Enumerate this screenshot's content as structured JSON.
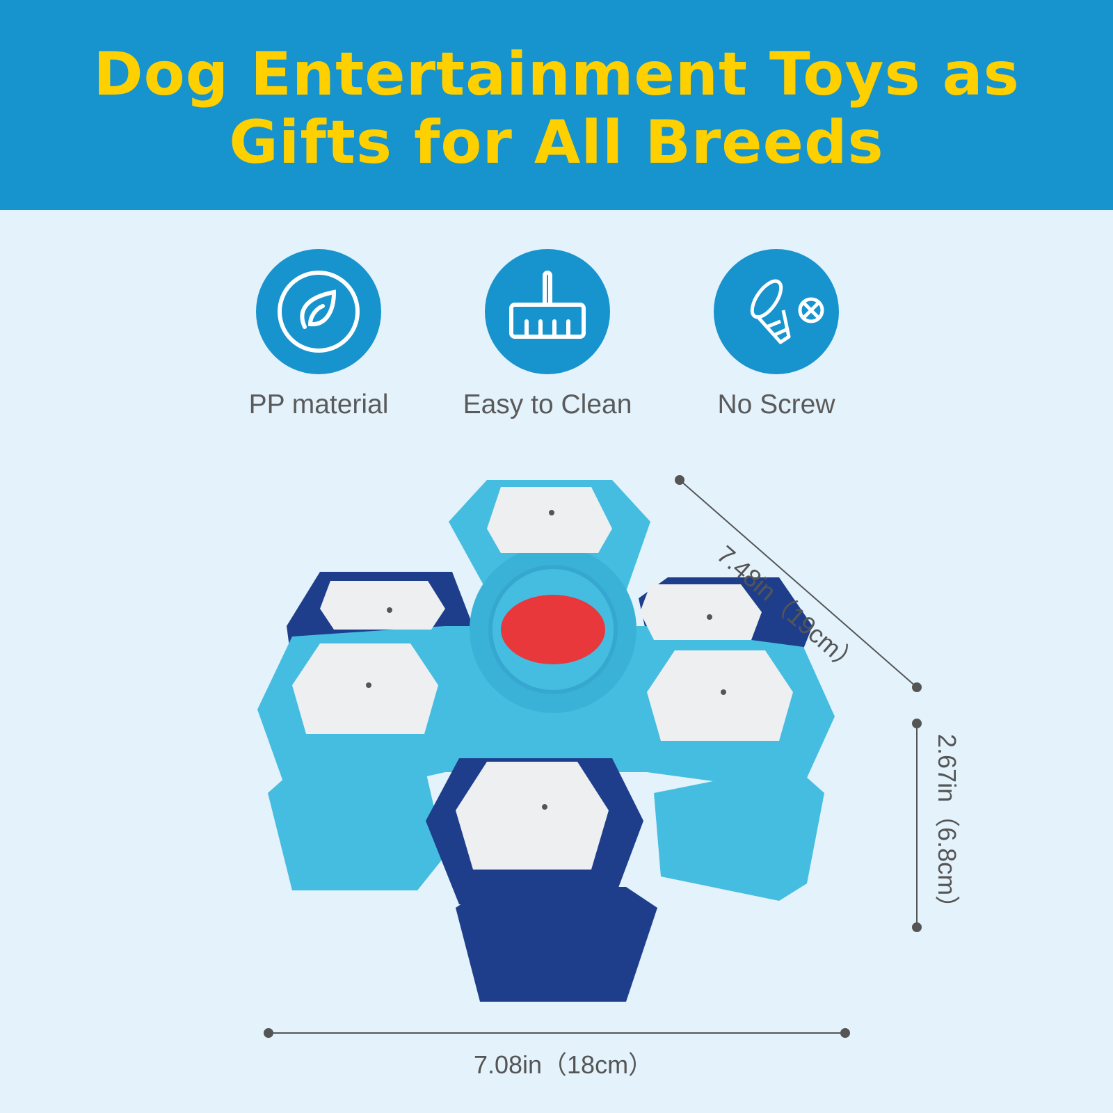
{
  "title": {
    "line1": "Dog Entertainment Toys as",
    "line2": "Gifts for All Breeds"
  },
  "features": [
    {
      "label": "PP material",
      "icon": "leaf-icon"
    },
    {
      "label": "Easy to Clean",
      "icon": "broom-icon"
    },
    {
      "label": "No Screw",
      "icon": "no-screw-icon"
    }
  ],
  "dimensions": {
    "depth": "7.48in（19cm）",
    "height": "2.67in（6.8cm）",
    "width": "7.08in（18cm）"
  },
  "colors": {
    "header": "#1793CE",
    "title": "#FFD000",
    "background": "#E3F2FB",
    "toy_light": "#45BDE0",
    "toy_dark": "#1E3E8C",
    "button": "#E8383C"
  }
}
